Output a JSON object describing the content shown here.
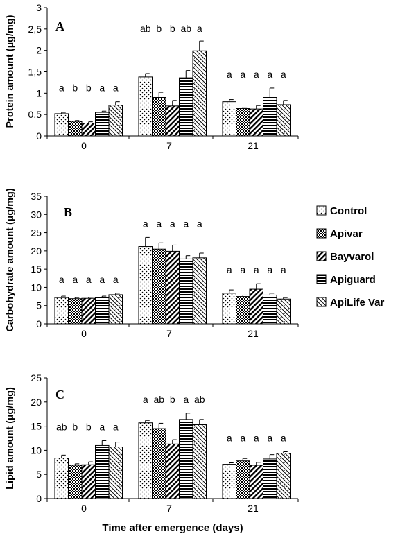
{
  "chart_data": [
    {
      "type": "bar",
      "panel_label": "A",
      "title": "",
      "ylabel": "Protein amount (µg/mg)",
      "xlabel": "",
      "categories": [
        "0",
        "7",
        "21"
      ],
      "ylim": [
        0,
        3
      ],
      "yticks": [
        "0",
        "0,5",
        "1",
        "1,5",
        "2",
        "2,5",
        "3"
      ],
      "series": [
        {
          "name": "Control",
          "values": [
            0.52,
            1.38,
            0.8
          ],
          "errors": [
            0.03,
            0.08,
            0.05
          ]
        },
        {
          "name": "Apivar",
          "values": [
            0.34,
            0.9,
            0.64
          ],
          "errors": [
            0.02,
            0.12,
            0.03
          ]
        },
        {
          "name": "Bayvarol",
          "values": [
            0.3,
            0.7,
            0.63
          ],
          "errors": [
            0.03,
            0.13,
            0.08
          ]
        },
        {
          "name": "Apiguard",
          "values": [
            0.55,
            1.36,
            0.9
          ],
          "errors": [
            0.03,
            0.17,
            0.22
          ]
        },
        {
          "name": "ApiLife Var",
          "values": [
            0.72,
            1.99,
            0.73
          ],
          "errors": [
            0.08,
            0.23,
            0.1
          ]
        }
      ],
      "significance": [
        [
          "a",
          "b",
          "b",
          "a",
          "a"
        ],
        [
          "ab",
          "b",
          "b",
          "ab",
          "a"
        ],
        [
          "a",
          "a",
          "a",
          "a",
          "a"
        ]
      ]
    },
    {
      "type": "bar",
      "panel_label": "B",
      "title": "",
      "ylabel": "Carbohydrate amount (µg/mg)",
      "xlabel": "",
      "categories": [
        "0",
        "7",
        "21"
      ],
      "ylim": [
        0,
        35
      ],
      "yticks": [
        "0",
        "5",
        "10",
        "15",
        "20",
        "25",
        "30",
        "35"
      ],
      "series": [
        {
          "name": "Control",
          "values": [
            7.2,
            21.2,
            8.4
          ],
          "errors": [
            0.4,
            2.5,
            0.9
          ]
        },
        {
          "name": "Apivar",
          "values": [
            6.9,
            20.5,
            7.5
          ],
          "errors": [
            0.3,
            1.7,
            0.4
          ]
        },
        {
          "name": "Bayvarol",
          "values": [
            7.0,
            19.9,
            9.5
          ],
          "errors": [
            0.3,
            1.7,
            1.5
          ]
        },
        {
          "name": "Apiguard",
          "values": [
            7.3,
            17.8,
            7.9
          ],
          "errors": [
            0.3,
            0.9,
            0.5
          ]
        },
        {
          "name": "ApiLife Var",
          "values": [
            8.0,
            18.1,
            6.8
          ],
          "errors": [
            0.4,
            1.3,
            0.4
          ]
        }
      ],
      "significance": [
        [
          "a",
          "a",
          "a",
          "a",
          "a"
        ],
        [
          "a",
          "a",
          "a",
          "a",
          "a"
        ],
        [
          "a",
          "a",
          "a",
          "a",
          "a"
        ]
      ]
    },
    {
      "type": "bar",
      "panel_label": "C",
      "title": "",
      "ylabel": "Lipid amount (µg/mg)",
      "xlabel": "Time after emergence (days)",
      "categories": [
        "0",
        "7",
        "21"
      ],
      "ylim": [
        0,
        25
      ],
      "yticks": [
        "0",
        "5",
        "10",
        "15",
        "20",
        "25"
      ],
      "series": [
        {
          "name": "Control",
          "values": [
            8.4,
            15.7,
            7.1
          ],
          "errors": [
            0.6,
            0.5,
            0.3
          ]
        },
        {
          "name": "Apivar",
          "values": [
            6.9,
            14.5,
            7.8
          ],
          "errors": [
            0.3,
            1.1,
            0.5
          ]
        },
        {
          "name": "Bayvarol",
          "values": [
            7.0,
            11.3,
            6.9
          ],
          "errors": [
            0.6,
            0.9,
            0.6
          ]
        },
        {
          "name": "Apiguard",
          "values": [
            11.0,
            16.4,
            8.2
          ],
          "errors": [
            1.0,
            1.3,
            0.9
          ]
        },
        {
          "name": "ApiLife Var",
          "values": [
            10.7,
            15.3,
            9.4
          ],
          "errors": [
            1.0,
            1.1,
            0.3
          ]
        }
      ],
      "significance": [
        [
          "ab",
          "b",
          "b",
          "a",
          "a"
        ],
        [
          "a",
          "ab",
          "b",
          "a",
          "ab"
        ],
        [
          "a",
          "a",
          "a",
          "a",
          "a"
        ]
      ]
    }
  ],
  "legend": {
    "position": "right",
    "items": [
      "Control",
      "Apivar",
      "Bayvarol",
      "Apiguard",
      "ApiLife Var"
    ]
  }
}
